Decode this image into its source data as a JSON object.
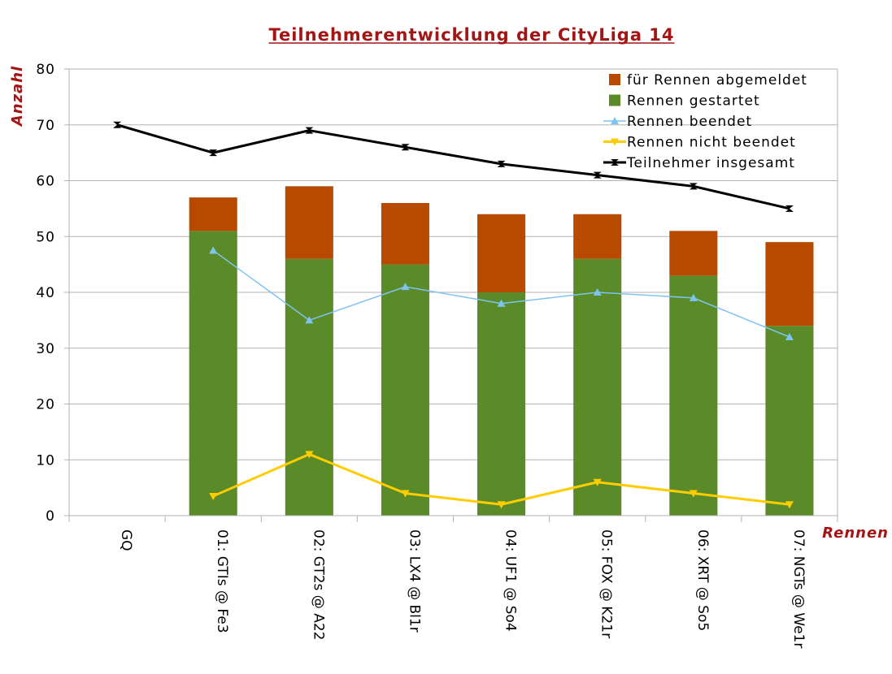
{
  "chart_data": {
    "type": "bar",
    "stacked": true,
    "title": "Teilnehmerentwicklung der CityLiga 14",
    "xlabel": "Rennen",
    "ylabel": "Anzahl",
    "ylim": [
      0,
      80
    ],
    "yticks": [
      0,
      10,
      20,
      30,
      40,
      50,
      60,
      70,
      80
    ],
    "grid": "horizontal",
    "legend_position": "top-right",
    "categories": [
      "GQ",
      "01: GTIs @ Fe3",
      "02: GT2s @ A22",
      "03: LX4 @ Bl1r",
      "04: UF1 @ So4",
      "05: FOX @ K21r",
      "06: XRT @ So5",
      "07: NGTs @ We1r"
    ],
    "series": [
      {
        "name": "für Rennen abgemeldet",
        "kind": "bar",
        "color": "#b84a00",
        "values": [
          null,
          6,
          13,
          11,
          14,
          8,
          8,
          15
        ]
      },
      {
        "name": "Rennen gestartet",
        "kind": "bar",
        "color": "#5b8a28",
        "values": [
          null,
          51,
          46,
          45,
          40,
          46,
          43,
          34
        ]
      },
      {
        "name": "Rennen beendet",
        "kind": "line",
        "marker": "triangle-up",
        "color": "#7fc4f0",
        "values": [
          null,
          47.5,
          35,
          41,
          38,
          40,
          39,
          32
        ]
      },
      {
        "name": "Rennen nicht beendet",
        "kind": "line",
        "marker": "triangle-down",
        "color": "#ffcc00",
        "values": [
          null,
          3.5,
          11,
          4,
          2,
          6,
          4,
          2
        ]
      },
      {
        "name": "Teilnehmer insgesamt",
        "kind": "line",
        "marker": "bowtie",
        "color": "#000000",
        "values": [
          70,
          65,
          69,
          66,
          63,
          61,
          59,
          55
        ]
      }
    ]
  }
}
